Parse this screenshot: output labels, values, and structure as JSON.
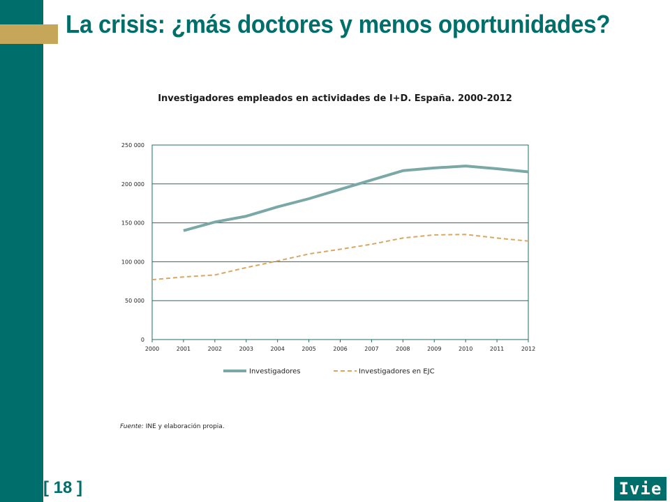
{
  "slide": {
    "title": "La crisis: ¿más doctores y menos oportunidades?",
    "number": "[ 18 ]",
    "logo": "Ivie",
    "source_label": "Fuente:",
    "source_text": " INE y elaboración propia."
  },
  "colors": {
    "teal": "#006e6a",
    "gold": "#c6a75a",
    "series_investigadores": "#7aa8a6",
    "series_ejc": "#d9a760"
  },
  "chart_data": {
    "type": "line",
    "title": "Investigadores empleados en actividades de I+D. España. 2000-2012",
    "xlabel": "",
    "ylabel": "",
    "x": [
      "2000",
      "2001",
      "2002",
      "2003",
      "2004",
      "2005",
      "2006",
      "2007",
      "2008",
      "2009",
      "2010",
      "2011",
      "2012"
    ],
    "ylim": [
      0,
      250000
    ],
    "yticks": [
      0,
      50000,
      100000,
      150000,
      200000,
      250000
    ],
    "ytick_labels": [
      "0",
      "50 000",
      "100 000",
      "150 000",
      "200 000",
      "250 000"
    ],
    "grid": "horizontal",
    "legend_position": "bottom",
    "series": [
      {
        "name": "Investigadores",
        "style": "solid",
        "values": [
          null,
          140000,
          151000,
          158500,
          170500,
          181000,
          193000,
          205000,
          217000,
          220500,
          223000,
          219500,
          215500
        ]
      },
      {
        "name": "Investigadores en EJC",
        "style": "dashed",
        "values": [
          77000,
          80500,
          83000,
          92500,
          101000,
          110000,
          116000,
          122500,
          130500,
          134500,
          135000,
          130500,
          126500
        ]
      }
    ]
  }
}
